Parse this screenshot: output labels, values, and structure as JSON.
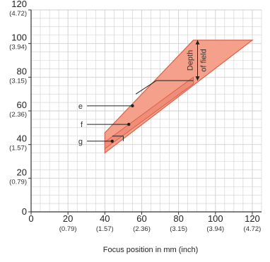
{
  "chart_data": {
    "type": "area",
    "title": "",
    "xlabel": "Focus position in mm (inch)",
    "ylabel": "",
    "xlim": [
      0,
      125
    ],
    "ylim": [
      0,
      120
    ],
    "grid": true,
    "x_ticks": [
      {
        "value": 0,
        "main": "0",
        "sub": ""
      },
      {
        "value": 20,
        "main": "20",
        "sub": "(0.79)"
      },
      {
        "value": 40,
        "main": "40",
        "sub": "(1.57)"
      },
      {
        "value": 60,
        "main": "60",
        "sub": "(2.36)"
      },
      {
        "value": 80,
        "main": "80",
        "sub": "(3.15)"
      },
      {
        "value": 100,
        "main": "100",
        "sub": "(3.94)"
      },
      {
        "value": 120,
        "main": "120",
        "sub": "(4.72)"
      }
    ],
    "y_ticks": [
      {
        "value": 0,
        "main": "0",
        "sub": ""
      },
      {
        "value": 20,
        "main": "20",
        "sub": "(0.79)"
      },
      {
        "value": 40,
        "main": "40",
        "sub": "(1.57)"
      },
      {
        "value": 60,
        "main": "60",
        "sub": "(2.36)"
      },
      {
        "value": 80,
        "main": "80",
        "sub": "(3.15)"
      },
      {
        "value": 100,
        "main": "100",
        "sub": "(3.94)"
      },
      {
        "value": 120,
        "main": "120",
        "sub": "(4.72)"
      }
    ],
    "depth_of_field_band": {
      "outer": [
        [
          40,
          35
        ],
        [
          40,
          47
        ],
        [
          88,
          102
        ],
        [
          120,
          102
        ]
      ],
      "inner_upper": [
        [
          40,
          41.5
        ],
        [
          88,
          80
        ]
      ],
      "inner_lower": [
        [
          40,
          37.5
        ],
        [
          88,
          76
        ]
      ],
      "step_line": [
        [
          68,
          78
        ],
        [
          88,
          78
        ]
      ]
    },
    "labeled_points": [
      {
        "label": "e",
        "x": 55,
        "y": 63,
        "label_x": 28,
        "label_y": 63
      },
      {
        "label": "f",
        "x": 53,
        "y": 52,
        "label_x": 28,
        "label_y": 52
      },
      {
        "label": "g",
        "x": 44,
        "y": 42,
        "label_x": 28,
        "label_y": 42
      }
    ],
    "g_bracket": [
      [
        44,
        45
      ],
      [
        50,
        45
      ]
    ],
    "depth_annotation": {
      "text_line1": "Depth",
      "text_line2": "of field",
      "x": 88,
      "y_from": 78,
      "y_to": 102
    },
    "colors": {
      "band_fill": "#f4a08a",
      "band_stroke": "#d9624a",
      "inner_fill": "#ef8d78",
      "grid": "#cfcfcf",
      "axis": "#333333",
      "ink": "#222222"
    }
  }
}
